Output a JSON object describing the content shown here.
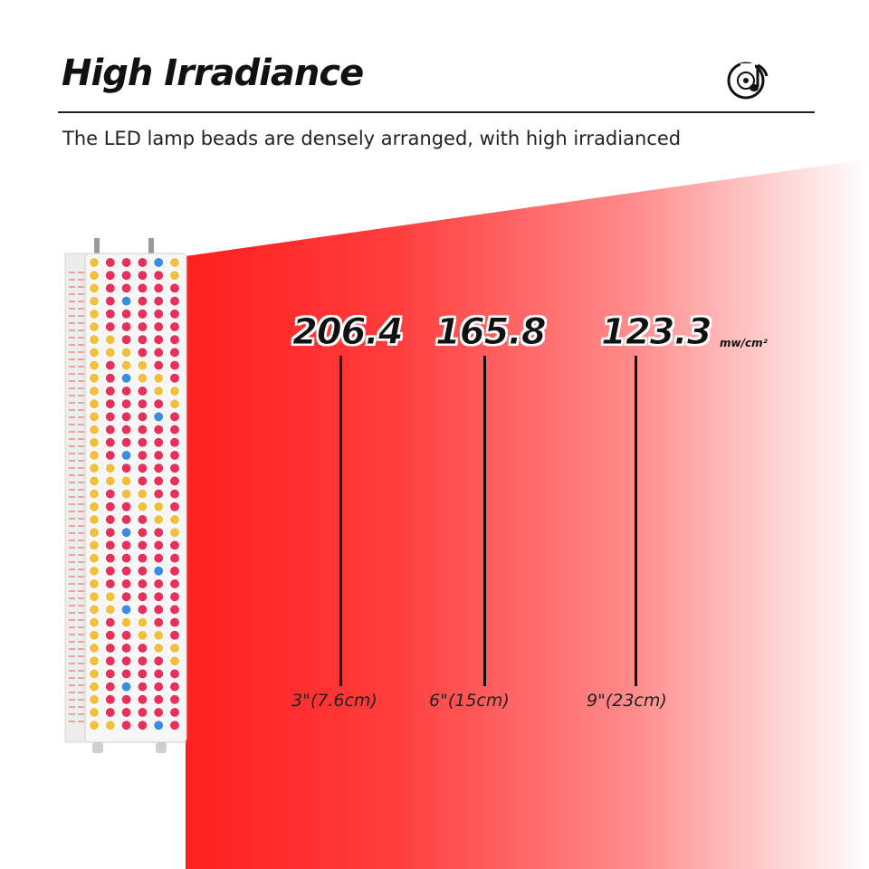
{
  "header": {
    "title": "High Irradiance",
    "subtitle": "The LED lamp beads are densely arranged, with high irradianced",
    "icon": "disc-music-note-icon"
  },
  "measurements": {
    "unit": "mw/cm²",
    "items": [
      {
        "value": "206.4",
        "distance": "3\"(7.6cm)"
      },
      {
        "value": "165.8",
        "distance": "6\"(15cm)"
      },
      {
        "value": "123.3",
        "distance": "9\"(23cm)"
      }
    ]
  },
  "colors": {
    "beam_start": "#ff2020",
    "beam_end": "#ffffff",
    "led_red": "#e8305a",
    "led_amber": "#f2c040",
    "led_blue": "#3a8ee0"
  }
}
